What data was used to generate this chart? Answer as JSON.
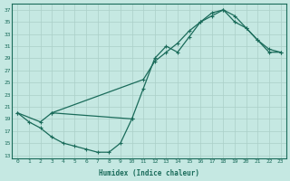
{
  "xlabel": "Humidex (Indice chaleur)",
  "bg_color": "#c5e8e2",
  "line_color": "#1a6b5a",
  "grid_color": "#aacfc8",
  "xlim": [
    -0.5,
    23.5
  ],
  "ylim": [
    12.5,
    38
  ],
  "yticks": [
    13,
    15,
    17,
    19,
    21,
    23,
    25,
    27,
    29,
    31,
    33,
    35,
    37
  ],
  "xticks": [
    0,
    1,
    2,
    3,
    4,
    5,
    6,
    7,
    8,
    9,
    10,
    11,
    12,
    13,
    14,
    15,
    16,
    17,
    18,
    19,
    20,
    21,
    22,
    23
  ],
  "line1_x": [
    0,
    1,
    2,
    3,
    4,
    5,
    6,
    7,
    8,
    9,
    10
  ],
  "line1_y": [
    20,
    18.5,
    17.5,
    16,
    15,
    14.5,
    14,
    13.5,
    13.5,
    15,
    19
  ],
  "line2_x": [
    0,
    2,
    3,
    10,
    11,
    12,
    13,
    14,
    15,
    16,
    17,
    18,
    19,
    20,
    21,
    22,
    23
  ],
  "line2_y": [
    20,
    18.5,
    20,
    19,
    24,
    29,
    31,
    30,
    32.5,
    35,
    36,
    37,
    36,
    34,
    32,
    30,
    30
  ],
  "line3_x": [
    3,
    11,
    12,
    13,
    14,
    15,
    16,
    17,
    18,
    19,
    20,
    21,
    22,
    23
  ],
  "line3_y": [
    20,
    25.5,
    28.5,
    30,
    31.5,
    33.5,
    35,
    36.5,
    37,
    35,
    34,
    32,
    30.5,
    30
  ]
}
